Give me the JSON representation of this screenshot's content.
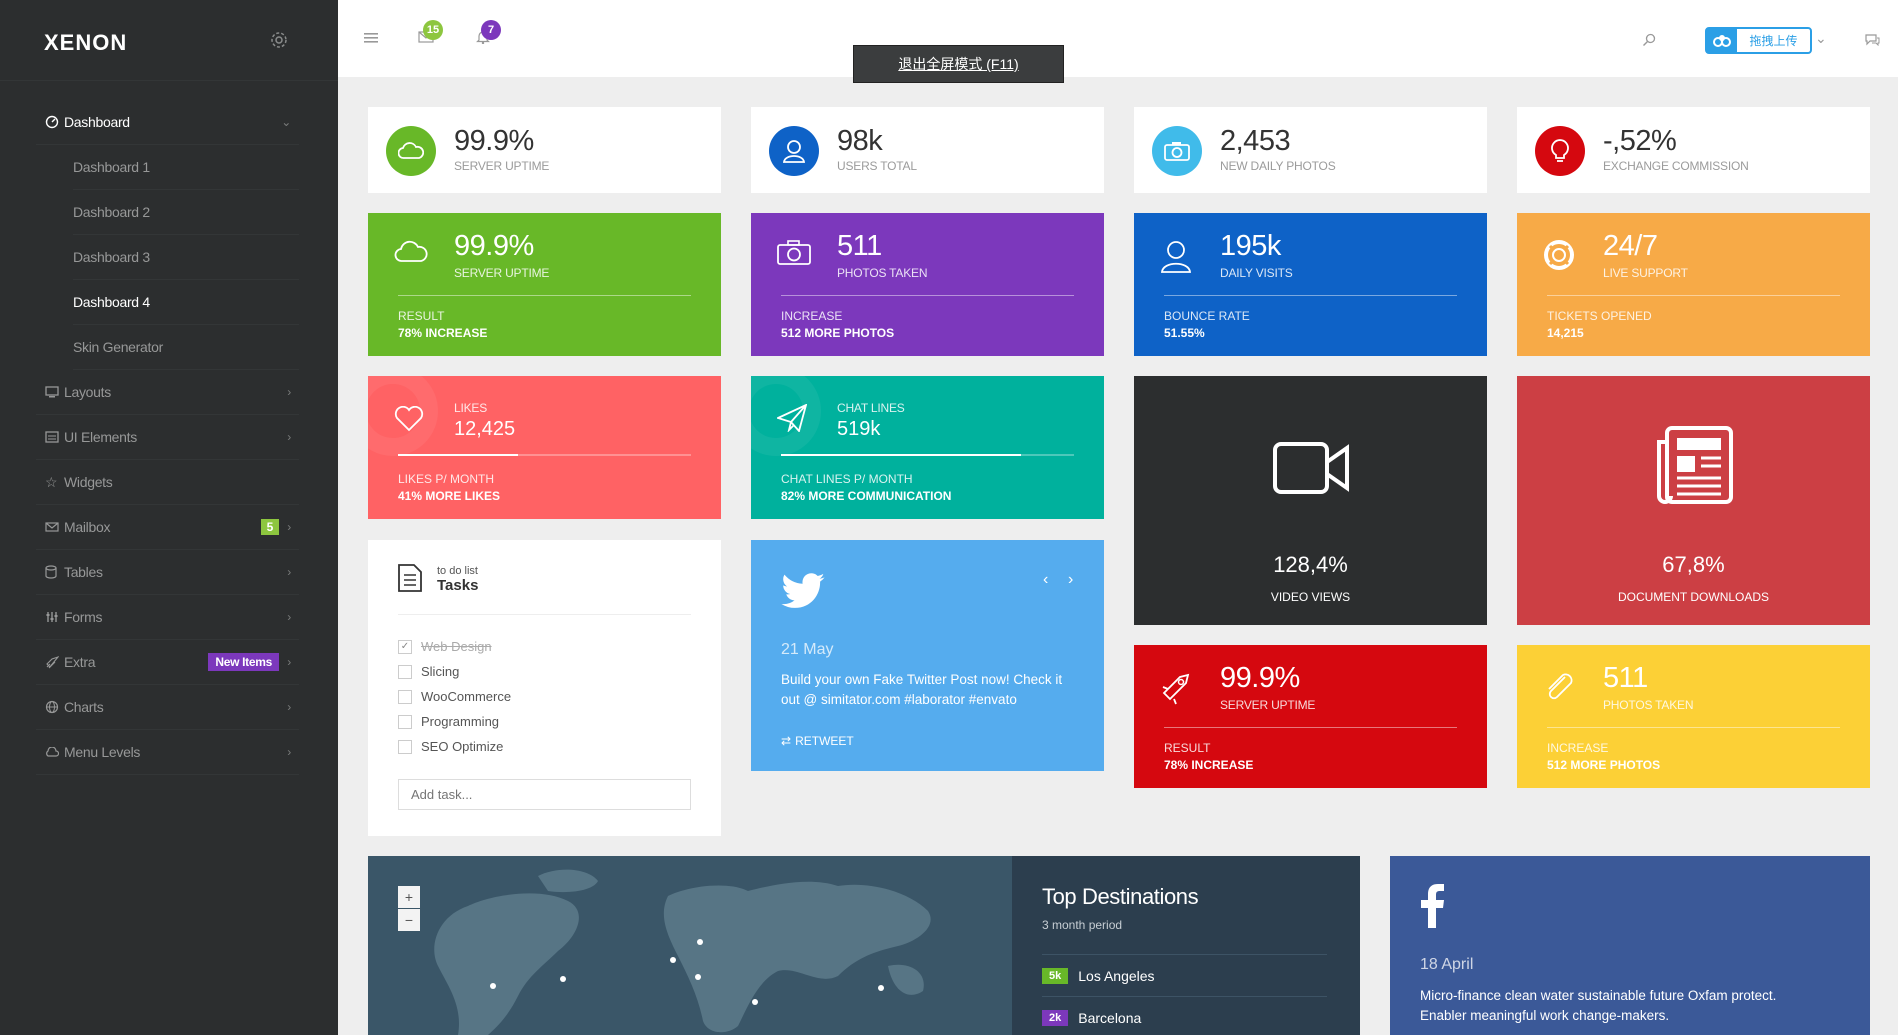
{
  "app": {
    "logo": "XENON"
  },
  "sidebar": {
    "items": [
      {
        "label": "Dashboard",
        "icon": "dashboard-icon"
      },
      {
        "label": "Layouts",
        "icon": "monitor-icon"
      },
      {
        "label": "UI Elements",
        "icon": "ui-elements-icon"
      },
      {
        "label": "Widgets",
        "icon": "star-icon"
      },
      {
        "label": "Mailbox",
        "icon": "mail-icon",
        "badge": "5"
      },
      {
        "label": "Tables",
        "icon": "database-icon"
      },
      {
        "label": "Forms",
        "icon": "forms-icon"
      },
      {
        "label": "Extra",
        "icon": "rocket-icon",
        "badge": "New Items"
      },
      {
        "label": "Charts",
        "icon": "globe-icon"
      },
      {
        "label": "Menu Levels",
        "icon": "cloud-icon"
      }
    ],
    "sub": [
      "Dashboard 1",
      "Dashboard 2",
      "Dashboard 3",
      "Dashboard 4",
      "Skin Generator"
    ]
  },
  "topbar": {
    "mail_count": "15",
    "bell_count": "7",
    "fullscreen_tip": "退出全屏模式 (F11)",
    "upload": "拖拽上传"
  },
  "stats_white": [
    {
      "value": "99.9%",
      "label": "SERVER UPTIME",
      "color": "#68b828"
    },
    {
      "value": "98k",
      "label": "USERS TOTAL",
      "color": "#0e62c7"
    },
    {
      "value": "2,453",
      "label": "NEW DAILY PHOTOS",
      "color": "#40bbea"
    },
    {
      "value": "-,52%",
      "label": "EXCHANGE COMMISSION",
      "color": "#d5080f"
    }
  ],
  "stats_color": [
    {
      "value": "99.9%",
      "label": "SERVER UPTIME",
      "l1": "RESULT",
      "l2": "78% INCREASE",
      "color": "#68b828"
    },
    {
      "value": "511",
      "label": "PHOTOS TAKEN",
      "l1": "INCREASE",
      "l2": "512 MORE PHOTOS",
      "color": "#7c38bc"
    },
    {
      "value": "195k",
      "label": "DAILY VISITS",
      "l1": "BOUNCE RATE",
      "l2": "51.55%",
      "color": "#0e62c7"
    },
    {
      "value": "24/7",
      "label": "LIVE SUPPORT",
      "l1": "TICKETS OPENED",
      "l2": "14,215",
      "color": "#f7aa47"
    }
  ],
  "progress_cards": [
    {
      "label": "LIKES",
      "value": "12,425",
      "l1": "LIKES P/ MONTH",
      "l2": "41% MORE LIKES",
      "progress": 0.41,
      "color": "#ff6264"
    },
    {
      "label": "CHAT LINES",
      "value": "519k",
      "l1": "CHAT LINES P/ MONTH",
      "l2": "82% MORE COMMUNICATION",
      "progress": 0.82,
      "color": "#00b19d"
    }
  ],
  "dark_cards": [
    {
      "value": "128,4%",
      "label": "VIDEO VIEWS",
      "color": "#2c2e2f"
    },
    {
      "value": "67,8%",
      "label": "DOCUMENT DOWNLOADS",
      "color": "#cc3f44"
    }
  ],
  "stats_color2": [
    {
      "value": "99.9%",
      "label": "SERVER UPTIME",
      "l1": "RESULT",
      "l2": "78% INCREASE",
      "color": "#d5080f"
    },
    {
      "value": "511",
      "label": "PHOTOS TAKEN",
      "l1": "INCREASE",
      "l2": "512 MORE PHOTOS",
      "color": "#fcd036"
    }
  ],
  "todo": {
    "subtitle": "to do list",
    "title": "Tasks",
    "tasks": [
      {
        "text": "Web Design",
        "done": true
      },
      {
        "text": "Slicing",
        "done": false
      },
      {
        "text": "WooCommerce",
        "done": false
      },
      {
        "text": "Programming",
        "done": false
      },
      {
        "text": "SEO Optimize",
        "done": false
      }
    ],
    "placeholder": "Add task..."
  },
  "twitter": {
    "date": "21 May",
    "text": "Build your own Fake Twitter Post now! Check it out @ simitator.com #laborator #envato",
    "retweet": "RETWEET",
    "prev": "‹",
    "next": "›"
  },
  "map": {
    "zoom_in": "+",
    "zoom_out": "−"
  },
  "destinations": {
    "title": "Top Destinations",
    "subtitle": "3 month period",
    "items": [
      {
        "badge": "5k",
        "city": "Los Angeles",
        "color": "#68b828"
      },
      {
        "badge": "2k",
        "city": "Barcelona",
        "color": "#7c38bc"
      }
    ]
  },
  "facebook": {
    "date": "18 April",
    "text": "Micro-finance clean water sustainable future Oxfam protect. Enabler meaningful work change-makers."
  }
}
